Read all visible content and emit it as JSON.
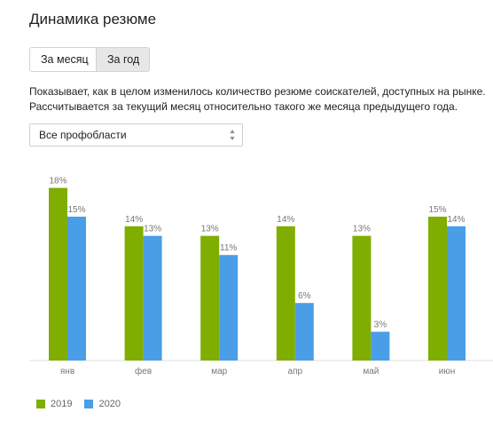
{
  "title": "Динамика резюме",
  "tabs": [
    {
      "label": "За месяц",
      "active": false
    },
    {
      "label": "За год",
      "active": true
    }
  ],
  "description": {
    "line1": "Показывает, как в целом изменилось количество резюме соискателей, доступных на рынке.",
    "line2": "Рассчитывается за текущий месяц относительно такого же месяца предыдущего года."
  },
  "filter": {
    "selected": "Все профобласти",
    "icon": "up-down-arrows-icon"
  },
  "colors": {
    "series_2019": "#7fae00",
    "series_2020": "#4a9ee8",
    "label_text": "#777777",
    "axis": "#e2e2e2"
  },
  "chart_data": {
    "type": "bar",
    "categories": [
      "янв",
      "фев",
      "мар",
      "апр",
      "май",
      "июн"
    ],
    "series": [
      {
        "name": "2019",
        "values": [
          18,
          14,
          13,
          14,
          13,
          15
        ],
        "labels": [
          "18%",
          "14%",
          "13%",
          "14%",
          "13%",
          "15%"
        ]
      },
      {
        "name": "2020",
        "values": [
          15,
          13,
          11,
          6,
          3,
          14
        ],
        "labels": [
          "15%",
          "13%",
          "11%",
          "6%",
          "3%",
          "14%"
        ]
      }
    ],
    "unit": "%",
    "ylim": [
      0,
      18
    ],
    "legend_position": "bottom-left",
    "grid": false
  }
}
